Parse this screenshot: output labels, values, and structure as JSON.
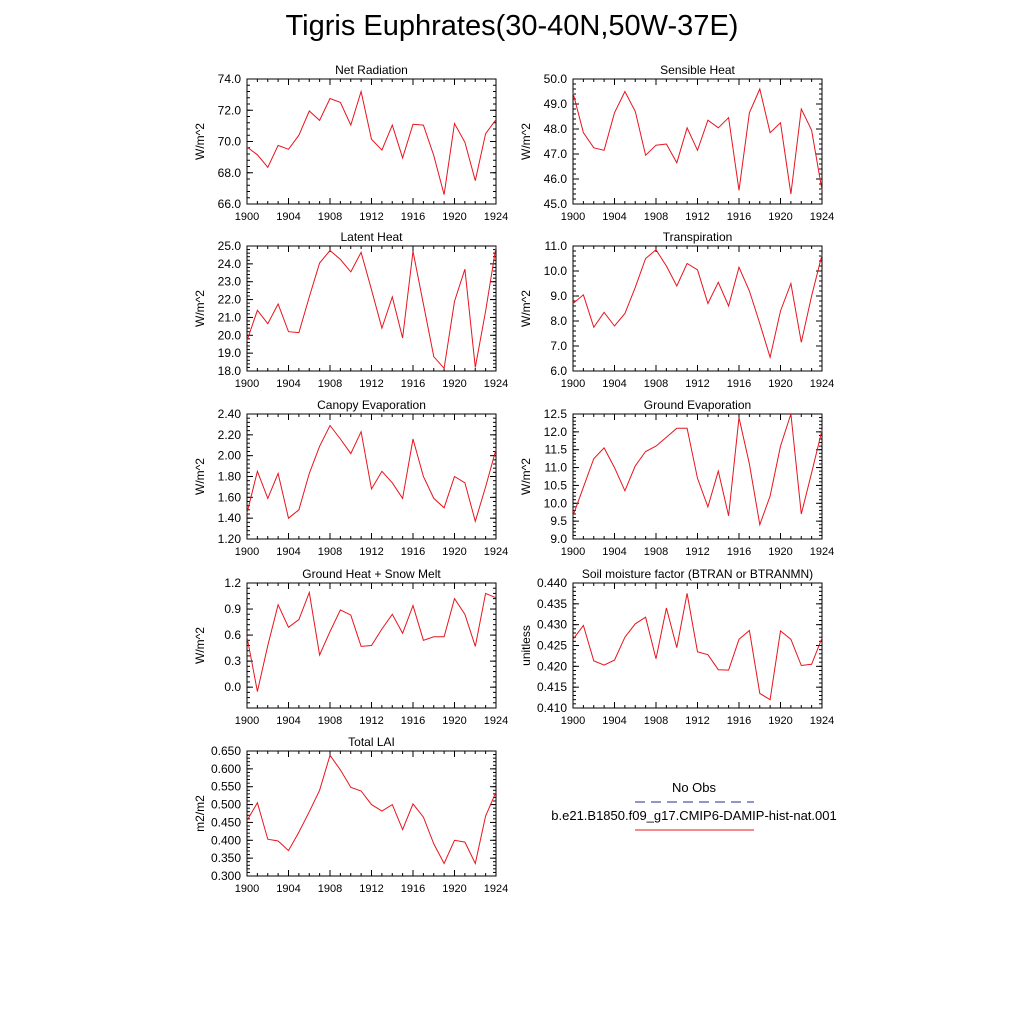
{
  "figure": {
    "title": "Tigris Euphrates(30-40N,50W-37E)"
  },
  "legend": {
    "obs_label": "No Obs",
    "obs_color": "#4a5aa8",
    "model_label": "b.e21.B1850.f09_g17.CMIP6-DAMIP-hist-nat.001",
    "model_color": "#e8141e"
  },
  "chart_data": [
    {
      "type": "line",
      "title": "Net Radiation",
      "ylabel": "W/m^2",
      "x": [
        1900,
        1901,
        1902,
        1903,
        1904,
        1905,
        1906,
        1907,
        1908,
        1909,
        1910,
        1911,
        1912,
        1913,
        1914,
        1915,
        1916,
        1917,
        1918,
        1919,
        1920,
        1921,
        1922,
        1923,
        1924
      ],
      "xlim": [
        1900,
        1924
      ],
      "xticks": [
        "1900",
        "1904",
        "1908",
        "1912",
        "1916",
        "1920",
        "1924"
      ],
      "ylim": [
        66.0,
        74.0
      ],
      "yticks": [
        "66.0",
        "68.0",
        "70.0",
        "72.0",
        "74.0"
      ],
      "series": [
        {
          "name": "b.e21.B1850.f09_g17.CMIP6-DAMIP-hist-nat.001",
          "color": "#e8141e",
          "values": [
            69.65,
            69.15,
            68.35,
            69.75,
            69.5,
            70.4,
            71.95,
            71.35,
            72.75,
            72.5,
            71.05,
            73.2,
            70.15,
            69.45,
            71.05,
            68.95,
            71.1,
            71.05,
            69.1,
            66.6,
            71.15,
            69.95,
            67.5,
            70.5,
            71.4
          ]
        }
      ]
    },
    {
      "type": "line",
      "title": "Sensible Heat",
      "ylabel": "W/m^2",
      "x": [
        1900,
        1901,
        1902,
        1903,
        1904,
        1905,
        1906,
        1907,
        1908,
        1909,
        1910,
        1911,
        1912,
        1913,
        1914,
        1915,
        1916,
        1917,
        1918,
        1919,
        1920,
        1921,
        1922,
        1923,
        1924
      ],
      "xlim": [
        1900,
        1924
      ],
      "xticks": [
        "1900",
        "1904",
        "1908",
        "1912",
        "1916",
        "1920",
        "1924"
      ],
      "ylim": [
        45.0,
        50.0
      ],
      "yticks": [
        "45.0",
        "46.0",
        "47.0",
        "48.0",
        "49.0",
        "50.0"
      ],
      "series": [
        {
          "name": "b.e21.B1850.f09_g17.CMIP6-DAMIP-hist-nat.001",
          "color": "#e8141e",
          "values": [
            49.45,
            47.85,
            47.25,
            47.15,
            48.65,
            49.5,
            48.7,
            46.95,
            47.35,
            47.4,
            46.65,
            48.05,
            47.15,
            48.35,
            48.05,
            48.45,
            45.55,
            48.65,
            49.6,
            47.85,
            48.25,
            45.4,
            48.8,
            47.95,
            45.55
          ]
        }
      ]
    },
    {
      "type": "line",
      "title": "Latent Heat",
      "ylabel": "W/m^2",
      "x": [
        1900,
        1901,
        1902,
        1903,
        1904,
        1905,
        1906,
        1907,
        1908,
        1909,
        1910,
        1911,
        1912,
        1913,
        1914,
        1915,
        1916,
        1917,
        1918,
        1919,
        1920,
        1921,
        1922,
        1923,
        1924
      ],
      "xlim": [
        1900,
        1924
      ],
      "xticks": [
        "1900",
        "1904",
        "1908",
        "1912",
        "1916",
        "1920",
        "1924"
      ],
      "ylim": [
        18.0,
        25.0
      ],
      "yticks": [
        "18.0",
        "19.0",
        "20.0",
        "21.0",
        "22.0",
        "23.0",
        "24.0",
        "25.0"
      ],
      "series": [
        {
          "name": "b.e21.B1850.f09_g17.CMIP6-DAMIP-hist-nat.001",
          "color": "#e8141e",
          "values": [
            19.7,
            21.4,
            20.65,
            21.75,
            20.2,
            20.15,
            22.15,
            24.05,
            24.75,
            24.25,
            23.55,
            24.65,
            22.55,
            20.4,
            22.15,
            19.85,
            24.7,
            21.75,
            18.8,
            18.15,
            21.9,
            23.7,
            18.2,
            21.35,
            24.95
          ]
        }
      ]
    },
    {
      "type": "line",
      "title": "Transpiration",
      "ylabel": "W/m^2",
      "x": [
        1900,
        1901,
        1902,
        1903,
        1904,
        1905,
        1906,
        1907,
        1908,
        1909,
        1910,
        1911,
        1912,
        1913,
        1914,
        1915,
        1916,
        1917,
        1918,
        1919,
        1920,
        1921,
        1922,
        1923,
        1924
      ],
      "xlim": [
        1900,
        1924
      ],
      "xticks": [
        "1900",
        "1904",
        "1908",
        "1912",
        "1916",
        "1920",
        "1924"
      ],
      "ylim": [
        6.0,
        11.0
      ],
      "yticks": [
        "6.0",
        "7.0",
        "8.0",
        "9.0",
        "10.0",
        "11.0"
      ],
      "series": [
        {
          "name": "b.e21.B1850.f09_g17.CMIP6-DAMIP-hist-nat.001",
          "color": "#e8141e",
          "values": [
            8.7,
            9.05,
            7.75,
            8.35,
            7.8,
            8.3,
            9.35,
            10.5,
            10.85,
            10.2,
            9.4,
            10.3,
            10.05,
            8.7,
            9.55,
            8.6,
            10.15,
            9.2,
            7.9,
            6.55,
            8.4,
            9.5,
            7.15,
            9.0,
            10.65
          ]
        }
      ]
    },
    {
      "type": "line",
      "title": "Canopy Evaporation",
      "ylabel": "W/m^2",
      "x": [
        1900,
        1901,
        1902,
        1903,
        1904,
        1905,
        1906,
        1907,
        1908,
        1909,
        1910,
        1911,
        1912,
        1913,
        1914,
        1915,
        1916,
        1917,
        1918,
        1919,
        1920,
        1921,
        1922,
        1923,
        1924
      ],
      "xlim": [
        1900,
        1924
      ],
      "xticks": [
        "1900",
        "1904",
        "1908",
        "1912",
        "1916",
        "1920",
        "1924"
      ],
      "ylim": [
        1.2,
        2.4
      ],
      "yticks": [
        "1.20",
        "1.40",
        "1.60",
        "1.80",
        "2.00",
        "2.20",
        "2.40"
      ],
      "series": [
        {
          "name": "b.e21.B1850.f09_g17.CMIP6-DAMIP-hist-nat.001",
          "color": "#e8141e",
          "values": [
            1.45,
            1.85,
            1.59,
            1.83,
            1.4,
            1.48,
            1.83,
            2.09,
            2.29,
            2.16,
            2.02,
            2.23,
            1.68,
            1.85,
            1.74,
            1.59,
            2.16,
            1.8,
            1.59,
            1.5,
            1.8,
            1.74,
            1.37,
            1.7,
            2.06
          ]
        }
      ]
    },
    {
      "type": "line",
      "title": "Ground Evaporation",
      "ylabel": "W/m^2",
      "x": [
        1900,
        1901,
        1902,
        1903,
        1904,
        1905,
        1906,
        1907,
        1908,
        1909,
        1910,
        1911,
        1912,
        1913,
        1914,
        1915,
        1916,
        1917,
        1918,
        1919,
        1920,
        1921,
        1922,
        1923,
        1924
      ],
      "xlim": [
        1900,
        1924
      ],
      "xticks": [
        "1900",
        "1904",
        "1908",
        "1912",
        "1916",
        "1920",
        "1924"
      ],
      "ylim": [
        9.0,
        12.5
      ],
      "yticks": [
        "9.0",
        "9.5",
        "10.0",
        "10.5",
        "11.0",
        "11.5",
        "12.0",
        "12.5"
      ],
      "series": [
        {
          "name": "b.e21.B1850.f09_g17.CMIP6-DAMIP-hist-nat.001",
          "color": "#e8141e",
          "values": [
            9.65,
            10.45,
            11.25,
            11.55,
            11.0,
            10.35,
            11.05,
            11.45,
            11.6,
            11.85,
            12.1,
            12.1,
            10.7,
            9.9,
            10.9,
            9.65,
            12.4,
            11.1,
            9.4,
            10.2,
            11.6,
            12.5,
            9.7,
            10.85,
            12.05
          ]
        }
      ]
    },
    {
      "type": "line",
      "title": "Ground Heat + Snow Melt",
      "ylabel": "W/m^2",
      "x": [
        1900,
        1901,
        1902,
        1903,
        1904,
        1905,
        1906,
        1907,
        1908,
        1909,
        1910,
        1911,
        1912,
        1913,
        1914,
        1915,
        1916,
        1917,
        1918,
        1919,
        1920,
        1921,
        1922,
        1923,
        1924
      ],
      "xlim": [
        1900,
        1924
      ],
      "xticks": [
        "1900",
        "1904",
        "1908",
        "1912",
        "1916",
        "1920",
        "1924"
      ],
      "ylim": [
        -0.24,
        1.2
      ],
      "yticks": [
        "0.0",
        "0.3",
        "0.6",
        "0.9",
        "1.2"
      ],
      "series": [
        {
          "name": "b.e21.B1850.f09_g17.CMIP6-DAMIP-hist-nat.001",
          "color": "#e8141e",
          "values": [
            0.58,
            -0.05,
            0.48,
            0.95,
            0.69,
            0.78,
            1.09,
            0.37,
            0.64,
            0.89,
            0.83,
            0.47,
            0.48,
            0.67,
            0.84,
            0.62,
            0.94,
            0.54,
            0.58,
            0.58,
            1.02,
            0.84,
            0.47,
            1.08,
            1.03
          ]
        }
      ]
    },
    {
      "type": "line",
      "title": "Soil moisture factor (BTRAN or BTRANMN)",
      "ylabel": "unitless",
      "x": [
        1900,
        1901,
        1902,
        1903,
        1904,
        1905,
        1906,
        1907,
        1908,
        1909,
        1910,
        1911,
        1912,
        1913,
        1914,
        1915,
        1916,
        1917,
        1918,
        1919,
        1920,
        1921,
        1922,
        1923,
        1924
      ],
      "xlim": [
        1900,
        1924
      ],
      "xticks": [
        "1900",
        "1904",
        "1908",
        "1912",
        "1916",
        "1920",
        "1924"
      ],
      "ylim": [
        0.41,
        0.44
      ],
      "yticks": [
        "0.410",
        "0.415",
        "0.420",
        "0.425",
        "0.430",
        "0.435",
        "0.440"
      ],
      "series": [
        {
          "name": "b.e21.B1850.f09_g17.CMIP6-DAMIP-hist-nat.001",
          "color": "#e8141e",
          "values": [
            0.4265,
            0.4298,
            0.4213,
            0.4203,
            0.4215,
            0.427,
            0.4302,
            0.4318,
            0.4218,
            0.434,
            0.4245,
            0.4375,
            0.4235,
            0.4228,
            0.4192,
            0.4191,
            0.4265,
            0.4286,
            0.4135,
            0.412,
            0.4285,
            0.4265,
            0.4202,
            0.4205,
            0.4268
          ]
        }
      ]
    },
    {
      "type": "line",
      "title": "Total LAI",
      "ylabel": "m2/m2",
      "x": [
        1900,
        1901,
        1902,
        1903,
        1904,
        1905,
        1906,
        1907,
        1908,
        1909,
        1910,
        1911,
        1912,
        1913,
        1914,
        1915,
        1916,
        1917,
        1918,
        1919,
        1920,
        1921,
        1922,
        1923,
        1924
      ],
      "xlim": [
        1900,
        1924
      ],
      "xticks": [
        "1900",
        "1904",
        "1908",
        "1912",
        "1916",
        "1920",
        "1924"
      ],
      "ylim": [
        0.3,
        0.65
      ],
      "yticks": [
        "0.300",
        "0.350",
        "0.400",
        "0.450",
        "0.500",
        "0.550",
        "0.600",
        "0.650"
      ],
      "series": [
        {
          "name": "b.e21.B1850.f09_g17.CMIP6-DAMIP-hist-nat.001",
          "color": "#e8141e",
          "values": [
            0.455,
            0.505,
            0.403,
            0.398,
            0.371,
            0.423,
            0.48,
            0.54,
            0.638,
            0.597,
            0.548,
            0.538,
            0.5,
            0.482,
            0.5,
            0.43,
            0.502,
            0.465,
            0.39,
            0.335,
            0.4,
            0.395,
            0.335,
            0.468,
            0.535
          ]
        }
      ]
    }
  ]
}
